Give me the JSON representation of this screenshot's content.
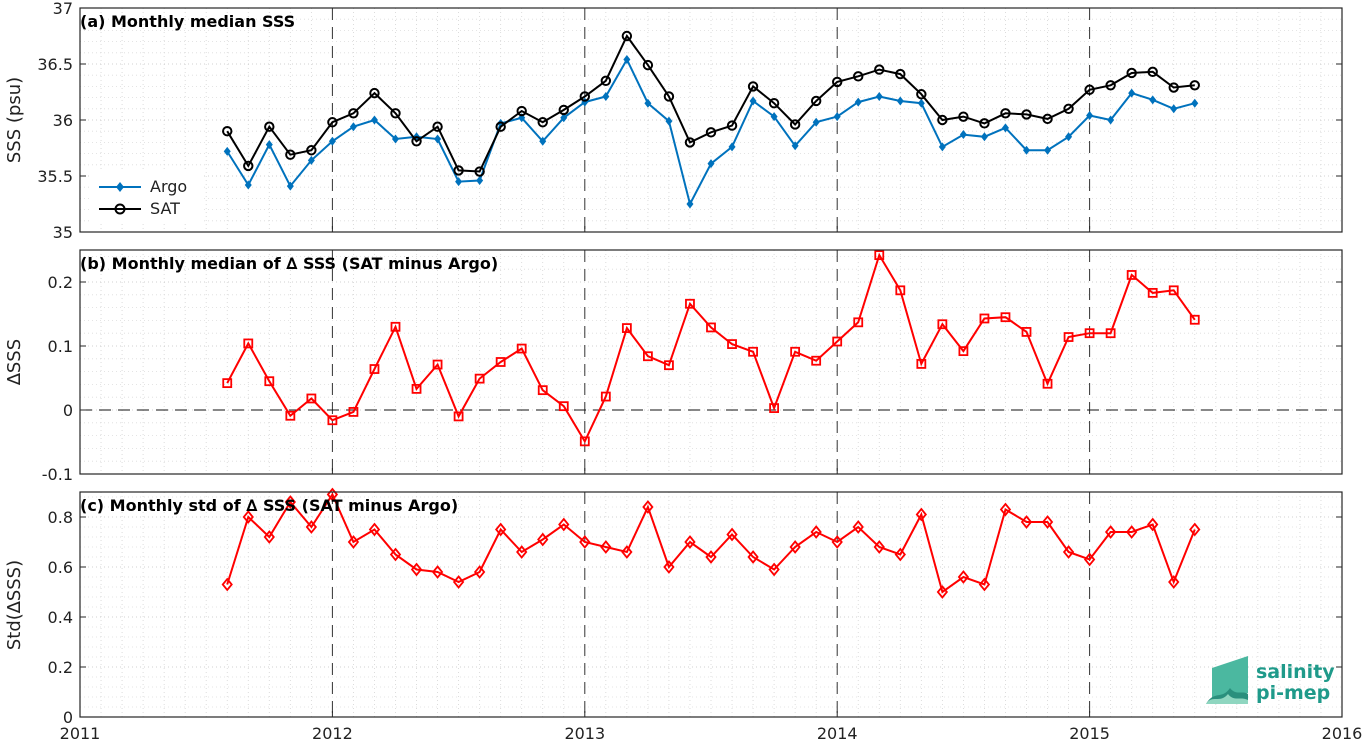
{
  "chart_data": [
    {
      "type": "line",
      "title": "(a) Monthly median SSS",
      "ylabel": "SSS (psu)",
      "xlim": [
        2011,
        2016
      ],
      "ylim": [
        35,
        37
      ],
      "yticks": [
        "35",
        "35.5",
        "36",
        "36.5",
        "37"
      ],
      "grid": "dotted",
      "legend": "left",
      "x_start": "2011-08",
      "series": [
        {
          "name": "Argo",
          "color": "#0072bd",
          "marker": "diamond-filled",
          "values": [
            35.72,
            35.42,
            35.78,
            35.41,
            35.64,
            35.81,
            35.94,
            36.0,
            35.83,
            35.85,
            35.83,
            35.45,
            35.46,
            35.97,
            36.02,
            35.81,
            36.02,
            36.16,
            36.21,
            36.54,
            36.15,
            35.99,
            35.25,
            35.61,
            35.76,
            36.17,
            36.03,
            35.77,
            35.98,
            36.03,
            36.16,
            36.21,
            36.17,
            36.15,
            35.76,
            35.87,
            35.85,
            35.93,
            35.73,
            35.73,
            35.85,
            36.04,
            36.0,
            36.24,
            36.18,
            36.1,
            36.15
          ]
        },
        {
          "name": "SAT",
          "color": "#000000",
          "marker": "circle-open",
          "values": [
            35.9,
            35.59,
            35.94,
            35.69,
            35.73,
            35.98,
            36.06,
            36.24,
            36.06,
            35.81,
            35.94,
            35.55,
            35.54,
            35.94,
            36.08,
            35.98,
            36.09,
            36.21,
            36.35,
            36.75,
            36.49,
            36.21,
            35.8,
            35.89,
            35.95,
            36.3,
            36.15,
            35.96,
            36.17,
            36.34,
            36.39,
            36.45,
            36.41,
            36.23,
            36.0,
            36.03,
            35.97,
            36.06,
            36.05,
            36.01,
            36.1,
            36.27,
            36.31,
            36.42,
            36.43,
            36.29,
            36.31
          ]
        }
      ]
    },
    {
      "type": "line",
      "title": "(b) Monthly median of ∆ SSS (SAT minus Argo)",
      "ylabel": "∆SSS",
      "xlim": [
        2011,
        2016
      ],
      "ylim": [
        -0.1,
        0.25
      ],
      "yticks": [
        "-0.1",
        "0",
        "0.1",
        "0.2"
      ],
      "grid": "dotted",
      "zero_line": "dashed",
      "x_start": "2011-08",
      "series": [
        {
          "name": "",
          "color": "#ff0000",
          "marker": "square-open",
          "values": [
            0.042,
            0.104,
            0.045,
            -0.009,
            0.018,
            -0.016,
            -0.003,
            0.064,
            0.13,
            0.033,
            0.071,
            -0.01,
            0.049,
            0.075,
            0.096,
            0.031,
            0.006,
            -0.049,
            0.021,
            0.128,
            0.084,
            0.07,
            0.166,
            0.129,
            0.103,
            0.091,
            0.003,
            0.091,
            0.077,
            0.107,
            0.137,
            0.242,
            0.187,
            0.072,
            0.134,
            0.092,
            0.143,
            0.145,
            0.122,
            0.041,
            0.114,
            0.12,
            0.12,
            0.211,
            0.183,
            0.187,
            0.141
          ]
        }
      ]
    },
    {
      "type": "line",
      "title": "(c) Monthly std of ∆ SSS (SAT minus Argo)",
      "ylabel": "Std(∆SSS)",
      "xlim": [
        2011,
        2016
      ],
      "ylim": [
        0,
        0.9
      ],
      "yticks": [
        "0",
        "0.2",
        "0.4",
        "0.6",
        "0.8"
      ],
      "xticks": [
        "2011",
        "2012",
        "2013",
        "2014",
        "2015",
        "2016"
      ],
      "grid": "dotted",
      "x_start": "2011-08",
      "series": [
        {
          "name": "",
          "color": "#ff0000",
          "marker": "diamond-open",
          "values": [
            0.53,
            0.8,
            0.72,
            0.86,
            0.76,
            0.89,
            0.7,
            0.75,
            0.65,
            0.59,
            0.58,
            0.54,
            0.58,
            0.75,
            0.66,
            0.71,
            0.77,
            0.7,
            0.68,
            0.66,
            0.84,
            0.6,
            0.7,
            0.64,
            0.73,
            0.64,
            0.59,
            0.68,
            0.74,
            0.7,
            0.76,
            0.68,
            0.65,
            0.81,
            0.5,
            0.56,
            0.53,
            0.83,
            0.78,
            0.78,
            0.66,
            0.63,
            0.74,
            0.74,
            0.77,
            0.54,
            0.75
          ]
        }
      ]
    }
  ],
  "logo": {
    "line1": "salinity",
    "line2": "pi-mep"
  }
}
